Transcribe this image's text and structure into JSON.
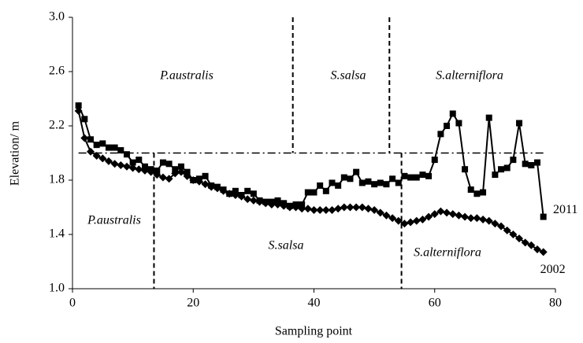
{
  "chart_data": {
    "type": "line",
    "xlabel": "Sampling point",
    "ylabel": "Elevation/ m",
    "xlim": [
      0,
      80
    ],
    "xticks": [
      0,
      20,
      40,
      60,
      80
    ],
    "ylim": [
      1.0,
      3.0
    ],
    "yticks": [
      {
        "value": 1.0,
        "label": "1.0"
      },
      1.4,
      1.8,
      2.2,
      2.6,
      {
        "value": 3.0,
        "label": "3.0"
      }
    ],
    "x": [
      1,
      2,
      3,
      4,
      5,
      6,
      7,
      8,
      9,
      10,
      11,
      12,
      13,
      14,
      15,
      16,
      17,
      18,
      19,
      20,
      21,
      22,
      23,
      24,
      25,
      26,
      27,
      28,
      29,
      30,
      31,
      32,
      33,
      34,
      35,
      36,
      37,
      38,
      39,
      40,
      41,
      42,
      43,
      44,
      45,
      46,
      47,
      48,
      49,
      50,
      51,
      52,
      53,
      54,
      55,
      56,
      57,
      58,
      59,
      60,
      61,
      62,
      63,
      64,
      65,
      66,
      67,
      68,
      69,
      70,
      71,
      72,
      73,
      74,
      75,
      76,
      77,
      78
    ],
    "series": [
      {
        "name": "2011",
        "color": "#000000",
        "marker": "square",
        "values": [
          2.35,
          2.25,
          2.1,
          2.06,
          2.07,
          2.04,
          2.04,
          2.02,
          1.99,
          1.93,
          1.95,
          1.9,
          1.88,
          1.87,
          1.93,
          1.92,
          1.88,
          1.9,
          1.86,
          1.8,
          1.81,
          1.83,
          1.76,
          1.75,
          1.73,
          1.7,
          1.72,
          1.69,
          1.72,
          1.7,
          1.65,
          1.64,
          1.64,
          1.65,
          1.63,
          1.61,
          1.62,
          1.62,
          1.71,
          1.71,
          1.76,
          1.72,
          1.78,
          1.76,
          1.82,
          1.81,
          1.86,
          1.78,
          1.79,
          1.77,
          1.78,
          1.77,
          1.81,
          1.78,
          1.83,
          1.82,
          1.82,
          1.84,
          1.83,
          1.95,
          2.14,
          2.2,
          2.29,
          2.22,
          1.88,
          1.73,
          1.7,
          1.71,
          2.26,
          1.84,
          1.88,
          1.89,
          1.95,
          2.22,
          1.92,
          1.91,
          1.93,
          1.53
        ]
      },
      {
        "name": "2002",
        "color": "#000000",
        "marker": "diamond",
        "values": [
          2.31,
          2.11,
          2.01,
          1.98,
          1.96,
          1.94,
          1.92,
          1.91,
          1.9,
          1.89,
          1.88,
          1.87,
          1.86,
          1.84,
          1.82,
          1.81,
          1.85,
          1.86,
          1.83,
          1.8,
          1.79,
          1.77,
          1.75,
          1.74,
          1.72,
          1.7,
          1.69,
          1.68,
          1.66,
          1.65,
          1.64,
          1.63,
          1.62,
          1.62,
          1.61,
          1.6,
          1.6,
          1.59,
          1.59,
          1.58,
          1.58,
          1.58,
          1.58,
          1.59,
          1.6,
          1.6,
          1.6,
          1.6,
          1.59,
          1.58,
          1.56,
          1.54,
          1.52,
          1.5,
          1.48,
          1.49,
          1.5,
          1.51,
          1.53,
          1.55,
          1.57,
          1.56,
          1.55,
          1.54,
          1.53,
          1.52,
          1.52,
          1.51,
          1.5,
          1.48,
          1.46,
          1.43,
          1.4,
          1.37,
          1.34,
          1.32,
          1.29,
          1.27
        ]
      }
    ],
    "divider": 2.0,
    "upper_bounds": [
      36.5,
      52.5
    ],
    "lower_bounds": [
      13.5,
      54.5
    ],
    "upper_zones": [
      "P.australis",
      "S.salsa",
      "S.alterniflora"
    ],
    "lower_zones": [
      "P.australis",
      "S.salsa",
      "S.alterniflora"
    ]
  }
}
